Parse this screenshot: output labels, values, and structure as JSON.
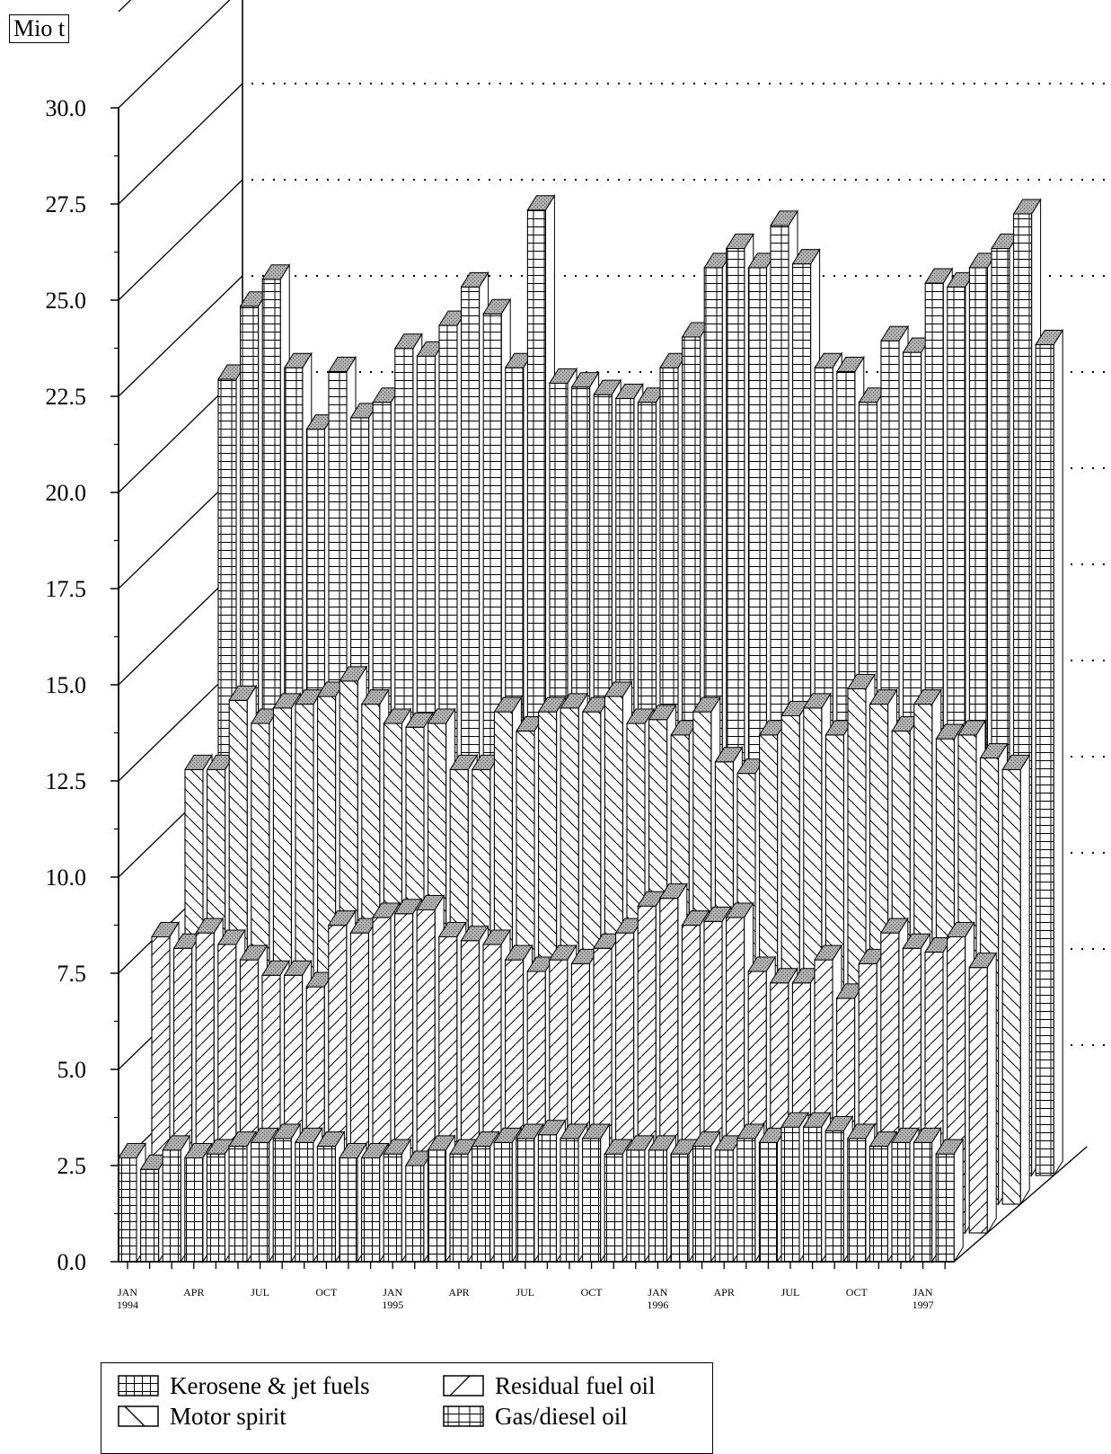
{
  "chart_data": {
    "type": "bar",
    "subtype": "3d-stacked-rows",
    "unit_label": "Mio t",
    "y_ticks": [
      "0.0",
      "2.5",
      "5.0",
      "7.5",
      "10.0",
      "12.5",
      "15.0",
      "17.5",
      "20.0",
      "22.5",
      "25.0",
      "27.5",
      "30.0"
    ],
    "ylim": [
      0,
      30
    ],
    "grid": "dotted horizontal on back wall",
    "x_labels": [
      {
        "i": 0,
        "text": "JAN",
        "sub": "1994"
      },
      {
        "i": 3,
        "text": "APR",
        "sub": ""
      },
      {
        "i": 6,
        "text": "JUL",
        "sub": ""
      },
      {
        "i": 9,
        "text": "OCT",
        "sub": ""
      },
      {
        "i": 12,
        "text": "JAN",
        "sub": "1995"
      },
      {
        "i": 15,
        "text": "APR",
        "sub": ""
      },
      {
        "i": 18,
        "text": "JUL",
        "sub": ""
      },
      {
        "i": 21,
        "text": "OCT",
        "sub": ""
      },
      {
        "i": 24,
        "text": "JAN",
        "sub": "1996"
      },
      {
        "i": 27,
        "text": "APR",
        "sub": ""
      },
      {
        "i": 30,
        "text": "JUL",
        "sub": ""
      },
      {
        "i": 33,
        "text": "OCT",
        "sub": ""
      },
      {
        "i": 36,
        "text": "JAN",
        "sub": "1997"
      }
    ],
    "series": [
      {
        "name": "Kerosene & jet fuels",
        "pattern": "grid",
        "values": [
          2.7,
          2.4,
          2.9,
          2.7,
          2.8,
          3.0,
          3.1,
          3.2,
          3.1,
          3.0,
          2.7,
          2.7,
          2.8,
          2.5,
          2.9,
          2.8,
          3.0,
          3.1,
          3.2,
          3.3,
          3.2,
          3.2,
          2.8,
          2.9,
          2.9,
          2.8,
          3.0,
          2.9,
          3.2,
          3.1,
          3.5,
          3.5,
          3.4,
          3.2,
          3.0,
          3.1,
          3.1,
          2.8
        ]
      },
      {
        "name": "Residual fuel oil",
        "pattern": "diag-up",
        "values": [
          7.7,
          7.4,
          7.8,
          7.5,
          7.1,
          6.7,
          6.7,
          6.4,
          8.0,
          7.8,
          8.2,
          8.3,
          8.4,
          7.7,
          7.6,
          7.5,
          7.1,
          6.8,
          7.1,
          7.0,
          7.4,
          7.8,
          8.5,
          8.7,
          8.0,
          8.1,
          8.2,
          6.8,
          6.5,
          6.5,
          7.1,
          6.1,
          7.0,
          7.8,
          7.4,
          7.3,
          7.7,
          6.9
        ]
      },
      {
        "name": "Motor spirit",
        "pattern": "diag-down",
        "values": [
          11.3,
          11.3,
          13.1,
          12.5,
          12.9,
          13.0,
          13.2,
          13.6,
          13.0,
          12.5,
          12.4,
          12.5,
          11.3,
          11.3,
          12.8,
          12.3,
          12.8,
          12.9,
          12.8,
          13.2,
          12.5,
          12.6,
          12.2,
          12.8,
          11.5,
          11.2,
          12.2,
          12.7,
          12.9,
          12.2,
          13.4,
          13.0,
          12.3,
          13.0,
          12.1,
          12.2,
          11.6,
          11.3
        ]
      },
      {
        "name": "Gas/diesel oil",
        "pattern": "grid-wide",
        "values": [
          20.7,
          22.6,
          23.3,
          21.0,
          19.4,
          20.9,
          19.7,
          20.1,
          21.5,
          21.3,
          22.1,
          23.1,
          22.4,
          21.0,
          25.1,
          20.6,
          20.5,
          20.3,
          20.2,
          20.1,
          21.0,
          21.8,
          23.6,
          24.1,
          23.6,
          24.7,
          23.7,
          21.0,
          20.9,
          20.1,
          21.7,
          21.4,
          23.2,
          23.1,
          23.6,
          24.1,
          25.0,
          21.6
        ]
      }
    ],
    "legend": {
      "position": "bottom",
      "entries": [
        "Kerosene & jet fuels",
        "Residual fuel oil",
        "Motor spirit",
        "Gas/diesel oil"
      ]
    }
  }
}
